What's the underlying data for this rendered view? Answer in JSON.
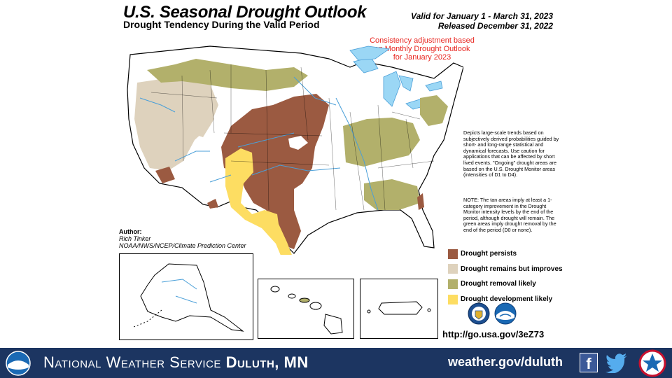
{
  "header": {
    "title": "U.S. Seasonal Drought Outlook",
    "subtitle": "Drought Tendency During the Valid Period",
    "valid": "Valid for January 1 - March 31, 2023",
    "released": "Released December 31, 2022",
    "consistency_note": "Consistency adjustment based on Monthly Drought Outlook for January 2023"
  },
  "description": "Depicts large-scale trends based on subjectively derived probabilities guided by short- and long-range statistical and dynamical forecasts. Use caution for applications that can be affected by short lived events. \"Ongoing\" drought areas are based on the U.S. Drought Monitor areas (intensities of D1 to D4).",
  "note": "NOTE: The tan areas imply at least a 1-category improvement in the Drought Monitor intensity levels by the end of the period, although drought will remain. The green areas imply drought removal by the end of the period (D0 or none).",
  "author": {
    "heading": "Author:",
    "name": "Rich Tinker",
    "org": "NOAA/NWS/NCEP/Climate Prediction Center"
  },
  "legend": [
    {
      "label": "Drought persists",
      "color": "#9b5a41"
    },
    {
      "label": "Drought remains but improves",
      "color": "#ded2bd"
    },
    {
      "label": "Drought removal likely",
      "color": "#b2b06b"
    },
    {
      "label": "Drought development likely",
      "color": "#fddd62"
    }
  ],
  "colors": {
    "water": "#9bd7f5",
    "rivers": "#4a9fd8",
    "footer_bg": "#1c3561",
    "consistency_text": "#e8251f"
  },
  "url": "http://go.usa.gov/3eZ73",
  "footer": {
    "org_prefix": "National Weather Service",
    "office": "Duluth, MN",
    "website": "weather.gov/duluth"
  },
  "icons": [
    "noaa-logo-icon",
    "doc-seal-icon",
    "facebook-icon",
    "twitter-icon",
    "nws-logo-icon"
  ]
}
